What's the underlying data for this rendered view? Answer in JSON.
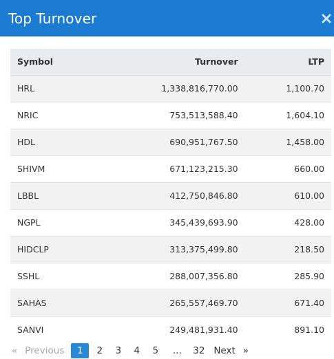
{
  "modal": {
    "title": "Top Turnover",
    "close_icon": "close-icon"
  },
  "table": {
    "headers": {
      "symbol": "Symbol",
      "turnover": "Turnover",
      "ltp": "LTP"
    },
    "rows": [
      {
        "symbol": "HRL",
        "turnover": "1,338,816,770.00",
        "ltp": "1,100.70"
      },
      {
        "symbol": "NRIC",
        "turnover": "753,513,588.40",
        "ltp": "1,604.10"
      },
      {
        "symbol": "HDL",
        "turnover": "690,951,767.50",
        "ltp": "1,458.00"
      },
      {
        "symbol": "SHIVM",
        "turnover": "671,123,215.30",
        "ltp": "660.00"
      },
      {
        "symbol": "LBBL",
        "turnover": "412,750,846.80",
        "ltp": "610.00"
      },
      {
        "symbol": "NGPL",
        "turnover": "345,439,693.90",
        "ltp": "428.00"
      },
      {
        "symbol": "HIDCLP",
        "turnover": "313,375,499.80",
        "ltp": "218.50"
      },
      {
        "symbol": "SSHL",
        "turnover": "288,007,356.80",
        "ltp": "285.90"
      },
      {
        "symbol": "SAHAS",
        "turnover": "265,557,469.70",
        "ltp": "671.40"
      },
      {
        "symbol": "SANVI",
        "turnover": "249,481,931.40",
        "ltp": "891.10"
      }
    ]
  },
  "pagination": {
    "prev_chevron": "«",
    "prev_label": "Previous",
    "pages": [
      "1",
      "2",
      "3",
      "4",
      "5"
    ],
    "ellipsis": "...",
    "last_page": "32",
    "next_label": "Next",
    "next_chevron": "»",
    "current_page": "1"
  },
  "colors": {
    "header_bg": "#1a7bd0",
    "active_page": "#2a88d8"
  }
}
